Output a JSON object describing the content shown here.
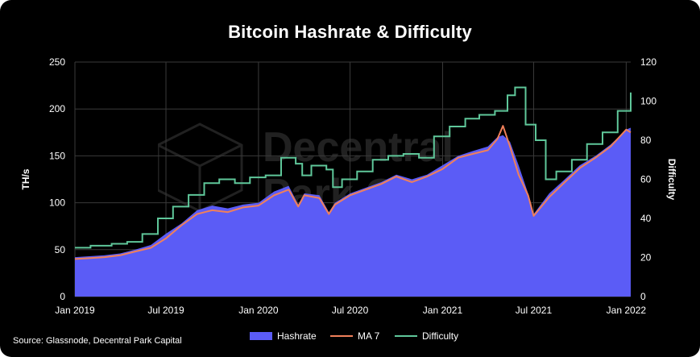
{
  "title": "Bitcoin Hashrate & Difficulty",
  "source": "Source: Glassnode, Decentral Park Capital",
  "watermark_text": [
    "Decentral",
    "Park Capital"
  ],
  "colors": {
    "hashrate": "#5b5cf6",
    "ma7": "#f0805a",
    "difficulty": "#5fc79a",
    "background": "#000000",
    "grid": "#3a3a3a"
  },
  "legend": [
    {
      "label": "Hashrate",
      "key": "hashrate",
      "kind": "box"
    },
    {
      "label": "MA 7",
      "key": "ma7",
      "kind": "line"
    },
    {
      "label": "Difficulty",
      "key": "difficulty",
      "kind": "line"
    }
  ],
  "chart_data": {
    "type": "area",
    "title": "Bitcoin Hashrate & Difficulty",
    "ylabel": "TH/s",
    "y2label": "Difficulty",
    "ylim": [
      0,
      250
    ],
    "y2lim": [
      0,
      120
    ],
    "yticks": [
      "0",
      "50",
      "100",
      "150",
      "200",
      "250"
    ],
    "y2ticks": [
      "0",
      "20",
      "40",
      "60",
      "80",
      "100",
      "120"
    ],
    "xlim": [
      "2019-01-01",
      "2022-01-10"
    ],
    "xticks": [
      {
        "date": "2019-01-01",
        "label": "Jan 2019"
      },
      {
        "date": "2019-07-01",
        "label": "Jul 2019"
      },
      {
        "date": "2020-01-01",
        "label": "Jan 2020"
      },
      {
        "date": "2020-07-01",
        "label": "Jul 2020"
      },
      {
        "date": "2021-01-01",
        "label": "Jan 2021"
      },
      {
        "date": "2021-07-01",
        "label": "Jul 2021"
      },
      {
        "date": "2022-01-01",
        "label": "Jan 2022"
      }
    ],
    "grid": true,
    "legend_position": "bottom",
    "series": [
      {
        "name": "Hashrate",
        "type": "area",
        "axis": "left",
        "x": [
          "2019-01-01",
          "2019-02-01",
          "2019-03-01",
          "2019-04-01",
          "2019-05-01",
          "2019-06-01",
          "2019-07-01",
          "2019-08-01",
          "2019-09-01",
          "2019-10-01",
          "2019-11-01",
          "2019-12-01",
          "2020-01-01",
          "2020-02-01",
          "2020-03-01",
          "2020-03-20",
          "2020-04-01",
          "2020-05-01",
          "2020-05-20",
          "2020-06-01",
          "2020-07-01",
          "2020-08-01",
          "2020-09-01",
          "2020-10-01",
          "2020-11-01",
          "2020-12-01",
          "2021-01-01",
          "2021-02-01",
          "2021-03-01",
          "2021-04-01",
          "2021-04-20",
          "2021-05-01",
          "2021-05-15",
          "2021-06-01",
          "2021-06-20",
          "2021-07-01",
          "2021-08-01",
          "2021-09-01",
          "2021-10-01",
          "2021-11-01",
          "2021-12-01",
          "2022-01-01",
          "2022-01-10"
        ],
        "values": [
          42,
          43,
          44,
          46,
          50,
          55,
          67,
          78,
          92,
          97,
          94,
          98,
          100,
          112,
          118,
          98,
          110,
          108,
          90,
          100,
          110,
          116,
          122,
          130,
          125,
          130,
          140,
          150,
          155,
          160,
          170,
          172,
          165,
          140,
          110,
          88,
          110,
          125,
          140,
          150,
          162,
          178,
          180
        ]
      },
      {
        "name": "MA 7",
        "type": "line",
        "axis": "left",
        "x": [
          "2019-01-01",
          "2019-02-01",
          "2019-03-01",
          "2019-04-01",
          "2019-05-01",
          "2019-06-01",
          "2019-07-01",
          "2019-08-01",
          "2019-09-01",
          "2019-10-01",
          "2019-11-01",
          "2019-12-01",
          "2020-01-01",
          "2020-02-01",
          "2020-03-01",
          "2020-03-20",
          "2020-04-01",
          "2020-05-01",
          "2020-05-20",
          "2020-06-01",
          "2020-07-01",
          "2020-08-01",
          "2020-09-01",
          "2020-10-01",
          "2020-11-01",
          "2020-12-01",
          "2021-01-01",
          "2021-02-01",
          "2021-03-01",
          "2021-04-01",
          "2021-04-20",
          "2021-05-01",
          "2021-05-15",
          "2021-06-01",
          "2021-06-20",
          "2021-07-01",
          "2021-08-01",
          "2021-09-01",
          "2021-10-01",
          "2021-11-01",
          "2021-12-01",
          "2022-01-01",
          "2022-01-10"
        ],
        "values": [
          40,
          41,
          42,
          44,
          48,
          52,
          62,
          76,
          88,
          92,
          90,
          95,
          97,
          108,
          114,
          96,
          108,
          105,
          88,
          98,
          108,
          114,
          120,
          128,
          122,
          128,
          136,
          148,
          152,
          156,
          168,
          182,
          160,
          130,
          108,
          86,
          106,
          122,
          137,
          148,
          160,
          178,
          175
        ]
      },
      {
        "name": "Difficulty",
        "type": "step",
        "axis": "right",
        "x": [
          "2019-01-01",
          "2019-02-01",
          "2019-03-15",
          "2019-04-15",
          "2019-05-15",
          "2019-06-15",
          "2019-07-15",
          "2019-08-15",
          "2019-09-15",
          "2019-10-15",
          "2019-11-15",
          "2019-12-15",
          "2020-01-15",
          "2020-02-15",
          "2020-03-15",
          "2020-03-28",
          "2020-04-15",
          "2020-05-15",
          "2020-05-28",
          "2020-06-15",
          "2020-07-15",
          "2020-08-15",
          "2020-09-15",
          "2020-10-15",
          "2020-11-15",
          "2020-12-15",
          "2021-01-15",
          "2021-02-15",
          "2021-03-15",
          "2021-04-15",
          "2021-05-10",
          "2021-05-25",
          "2021-06-15",
          "2021-07-05",
          "2021-07-25",
          "2021-08-15",
          "2021-09-15",
          "2021-10-15",
          "2021-11-15",
          "2021-12-15",
          "2022-01-10"
        ],
        "values": [
          25,
          26,
          27,
          28,
          32,
          40,
          46,
          52,
          58,
          60,
          58,
          61,
          62,
          71,
          68,
          62,
          67,
          65,
          56,
          60,
          64,
          70,
          72,
          73,
          71,
          82,
          87,
          91,
          93,
          95,
          103,
          107,
          88,
          80,
          60,
          64,
          70,
          78,
          84,
          95,
          104
        ]
      }
    ]
  }
}
